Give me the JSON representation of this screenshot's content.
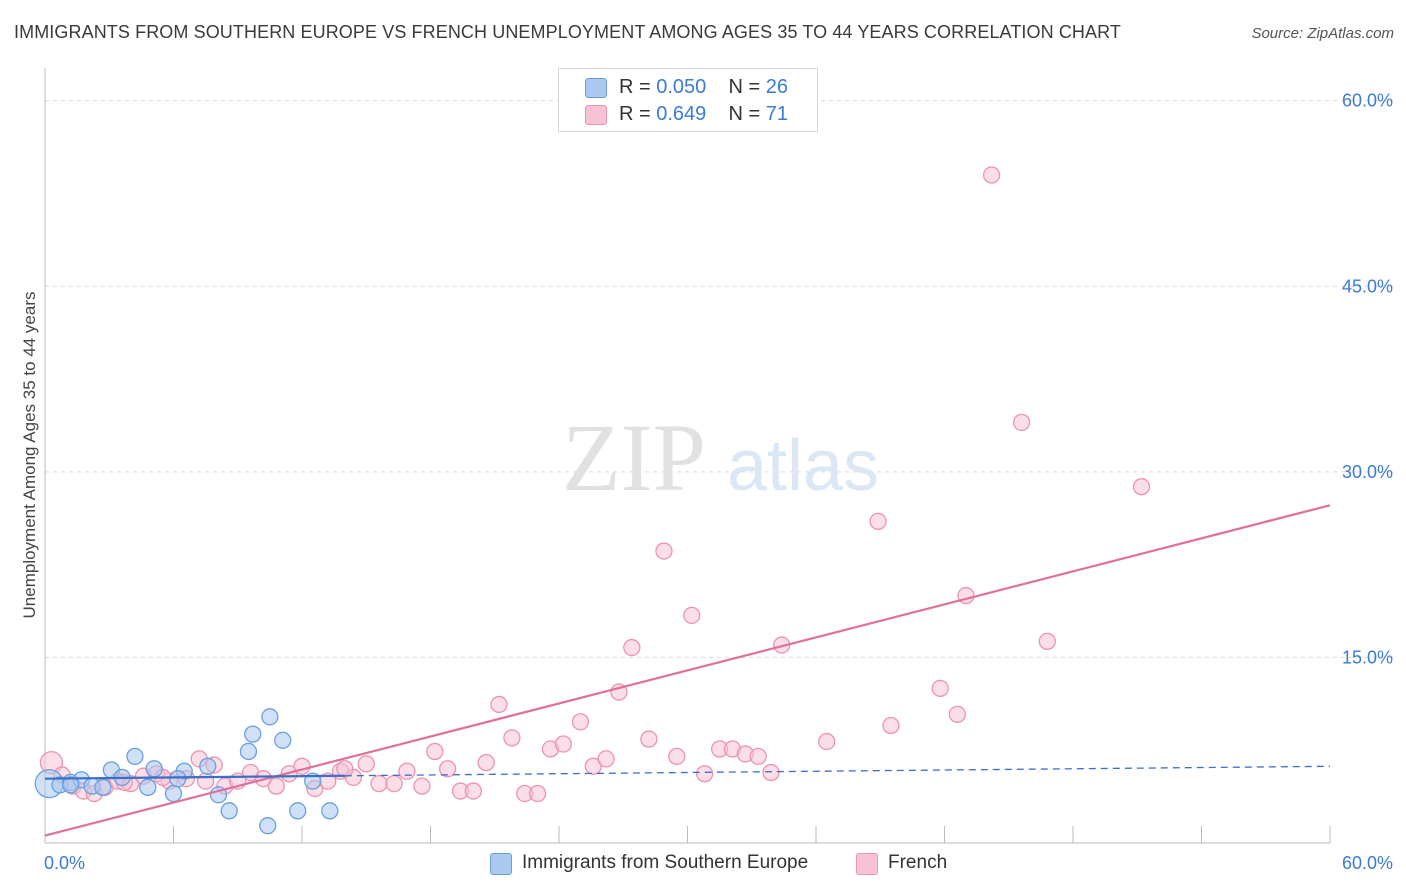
{
  "header": {
    "title": "IMMIGRANTS FROM SOUTHERN EUROPE VS FRENCH UNEMPLOYMENT AMONG AGES 35 TO 44 YEARS CORRELATION CHART",
    "source": "Source: ZipAtlas.com"
  },
  "watermark": {
    "zip": "ZIP",
    "atlas": "atlas"
  },
  "legend": {
    "series1": {
      "r_label": "R =",
      "r_value": "0.050",
      "n_label": "N =",
      "n_value": "26"
    },
    "series2": {
      "r_label": "R =",
      "r_value": "0.649",
      "n_label": "N =",
      "n_value": "71"
    }
  },
  "colors": {
    "blue_fill": "#aac8f0",
    "blue_stroke": "#6a9fdc",
    "blue_line": "#3a6fc9",
    "pink_fill": "#f7c3d3",
    "pink_stroke": "#eb93b0",
    "pink_line": "#e0709a",
    "axis_text": "#3a7bd5",
    "grid": "#d9d9d9"
  },
  "chart_data": {
    "type": "scatter",
    "title": "IMMIGRANTS FROM SOUTHERN EUROPE VS FRENCH UNEMPLOYMENT AMONG AGES 35 TO 44 YEARS CORRELATION CHART",
    "xlabel": "",
    "ylabel": "Unemployment Among Ages 35 to 44 years",
    "xlim": [
      0,
      60
    ],
    "ylim": [
      0,
      62
    ],
    "x_tick_labels": [
      "0.0%",
      "60.0%"
    ],
    "y_ticks": [
      15,
      30,
      45,
      60
    ],
    "y_tick_labels": [
      "15.0%",
      "30.0%",
      "45.0%",
      "60.0%"
    ],
    "grid": true,
    "series": [
      {
        "name": "Immigrants from Southern Europe",
        "r": 0.05,
        "n": 26,
        "points": [
          {
            "x": 0.2,
            "y": 4.8
          },
          {
            "x": 0.7,
            "y": 4.7
          },
          {
            "x": 1.2,
            "y": 4.9
          },
          {
            "x": 1.7,
            "y": 5.1
          },
          {
            "x": 2.2,
            "y": 4.6
          },
          {
            "x": 2.7,
            "y": 4.5
          },
          {
            "x": 3.1,
            "y": 5.9
          },
          {
            "x": 3.6,
            "y": 5.3
          },
          {
            "x": 4.2,
            "y": 7.0
          },
          {
            "x": 4.8,
            "y": 4.5
          },
          {
            "x": 5.1,
            "y": 6.0
          },
          {
            "x": 6.0,
            "y": 4.0
          },
          {
            "x": 6.5,
            "y": 5.8
          },
          {
            "x": 7.6,
            "y": 6.2
          },
          {
            "x": 8.1,
            "y": 3.9
          },
          {
            "x": 8.6,
            "y": 2.6
          },
          {
            "x": 9.5,
            "y": 7.4
          },
          {
            "x": 9.7,
            "y": 8.8
          },
          {
            "x": 10.4,
            "y": 1.4
          },
          {
            "x": 10.5,
            "y": 10.2
          },
          {
            "x": 11.1,
            "y": 8.3
          },
          {
            "x": 11.8,
            "y": 2.6
          },
          {
            "x": 12.5,
            "y": 5.0
          },
          {
            "x": 13.3,
            "y": 2.6
          },
          {
            "x": 1.2,
            "y": 4.7
          },
          {
            "x": 6.2,
            "y": 5.2
          }
        ],
        "trend": {
          "x": [
            0,
            60
          ],
          "y": [
            5.2,
            6.2
          ],
          "solid_until_x": 14
        }
      },
      {
        "name": "French",
        "r": 0.649,
        "n": 71,
        "points": [
          {
            "x": 0.3,
            "y": 6.5
          },
          {
            "x": 0.8,
            "y": 5.5
          },
          {
            "x": 1.3,
            "y": 4.6
          },
          {
            "x": 1.8,
            "y": 4.2
          },
          {
            "x": 2.3,
            "y": 4.0
          },
          {
            "x": 2.8,
            "y": 4.5
          },
          {
            "x": 3.4,
            "y": 5.0
          },
          {
            "x": 4.0,
            "y": 4.8
          },
          {
            "x": 4.6,
            "y": 5.4
          },
          {
            "x": 5.2,
            "y": 5.6
          },
          {
            "x": 5.8,
            "y": 5.0
          },
          {
            "x": 6.6,
            "y": 5.2
          },
          {
            "x": 7.2,
            "y": 6.8
          },
          {
            "x": 7.9,
            "y": 6.3
          },
          {
            "x": 8.4,
            "y": 4.6
          },
          {
            "x": 9.0,
            "y": 5.0
          },
          {
            "x": 9.6,
            "y": 5.7
          },
          {
            "x": 10.2,
            "y": 5.2
          },
          {
            "x": 10.8,
            "y": 4.6
          },
          {
            "x": 11.4,
            "y": 5.6
          },
          {
            "x": 12.0,
            "y": 6.2
          },
          {
            "x": 12.6,
            "y": 4.4
          },
          {
            "x": 13.2,
            "y": 5.0
          },
          {
            "x": 13.8,
            "y": 5.8
          },
          {
            "x": 14.4,
            "y": 5.3
          },
          {
            "x": 15.0,
            "y": 6.4
          },
          {
            "x": 15.6,
            "y": 4.8
          },
          {
            "x": 16.3,
            "y": 4.8
          },
          {
            "x": 16.9,
            "y": 5.8
          },
          {
            "x": 17.6,
            "y": 4.6
          },
          {
            "x": 18.2,
            "y": 7.4
          },
          {
            "x": 18.8,
            "y": 6.0
          },
          {
            "x": 19.4,
            "y": 4.2
          },
          {
            "x": 20.0,
            "y": 4.2
          },
          {
            "x": 20.6,
            "y": 6.5
          },
          {
            "x": 21.2,
            "y": 11.2
          },
          {
            "x": 21.8,
            "y": 8.5
          },
          {
            "x": 22.4,
            "y": 4.0
          },
          {
            "x": 23.0,
            "y": 4.0
          },
          {
            "x": 23.6,
            "y": 7.6
          },
          {
            "x": 24.2,
            "y": 8.0
          },
          {
            "x": 25.0,
            "y": 9.8
          },
          {
            "x": 25.6,
            "y": 6.2
          },
          {
            "x": 26.2,
            "y": 6.8
          },
          {
            "x": 26.8,
            "y": 12.2
          },
          {
            "x": 27.4,
            "y": 15.8
          },
          {
            "x": 28.2,
            "y": 8.4
          },
          {
            "x": 28.9,
            "y": 23.6
          },
          {
            "x": 29.5,
            "y": 7.0
          },
          {
            "x": 30.2,
            "y": 18.4
          },
          {
            "x": 30.8,
            "y": 5.6
          },
          {
            "x": 31.5,
            "y": 7.6
          },
          {
            "x": 32.1,
            "y": 7.6
          },
          {
            "x": 32.7,
            "y": 7.2
          },
          {
            "x": 33.3,
            "y": 7.0
          },
          {
            "x": 33.9,
            "y": 5.7
          },
          {
            "x": 34.4,
            "y": 16.0
          },
          {
            "x": 36.5,
            "y": 8.2
          },
          {
            "x": 38.9,
            "y": 26.0
          },
          {
            "x": 39.5,
            "y": 9.5
          },
          {
            "x": 41.8,
            "y": 12.5
          },
          {
            "x": 42.6,
            "y": 10.4
          },
          {
            "x": 43.0,
            "y": 20.0
          },
          {
            "x": 44.2,
            "y": 54.0
          },
          {
            "x": 45.6,
            "y": 34.0
          },
          {
            "x": 46.8,
            "y": 16.3
          },
          {
            "x": 51.2,
            "y": 28.8
          },
          {
            "x": 7.5,
            "y": 5.0
          },
          {
            "x": 5.5,
            "y": 5.3
          },
          {
            "x": 14.0,
            "y": 6.0
          },
          {
            "x": 3.7,
            "y": 4.9
          }
        ],
        "trend": {
          "x": [
            0,
            60
          ],
          "y": [
            0.6,
            27.3
          ]
        }
      }
    ]
  },
  "bottom_legend": {
    "item1": "Immigrants from Southern Europe",
    "item2": "French"
  }
}
